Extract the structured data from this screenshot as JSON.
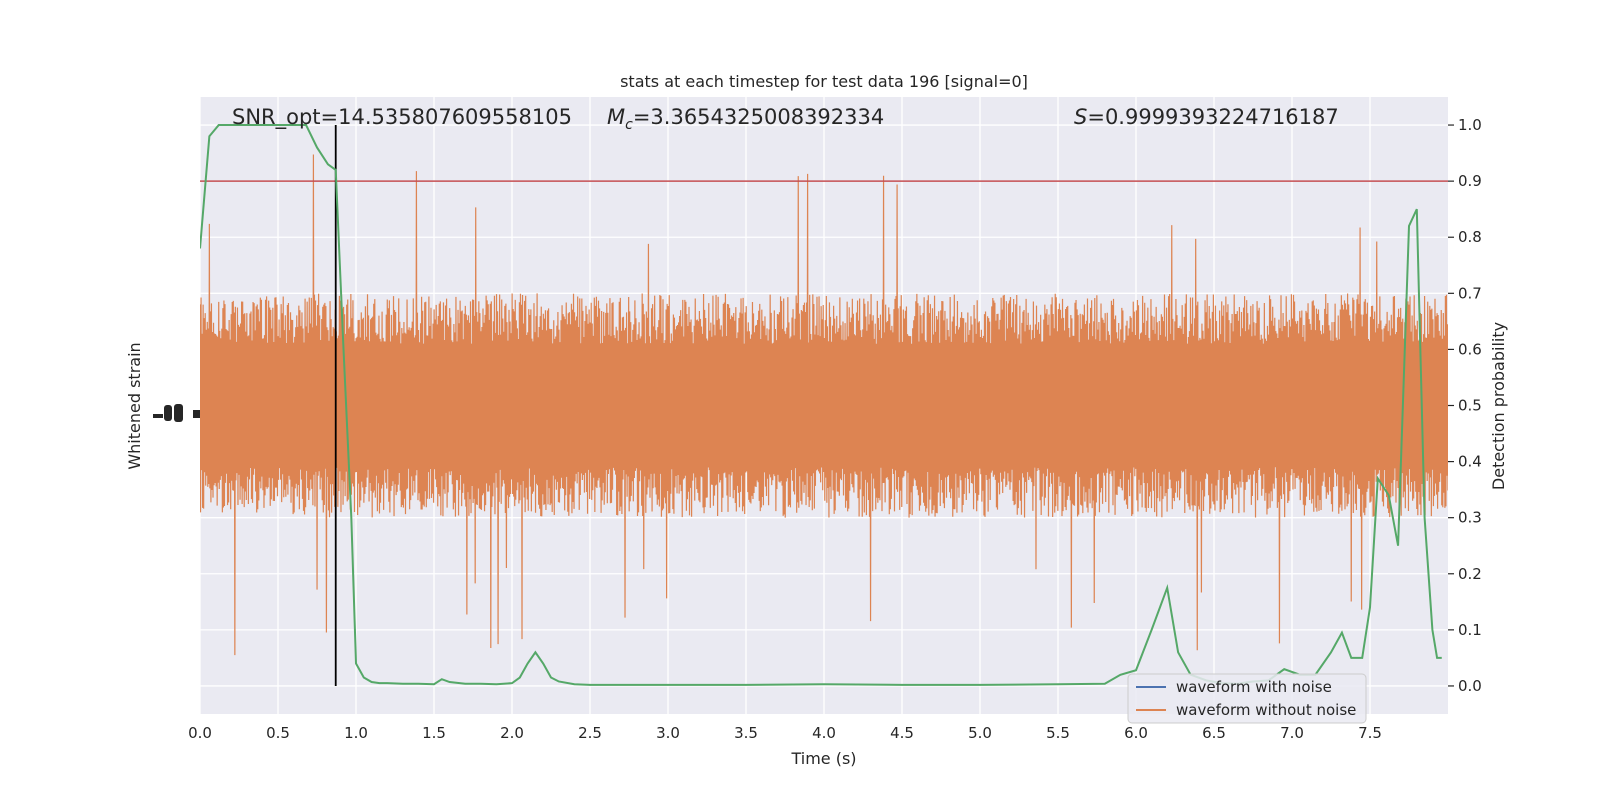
{
  "chart_data": {
    "type": "line",
    "title": "stats at each timestep for test data 196 [signal=0]",
    "xlabel": "Time (s)",
    "ylabel_left": "Whitened strain",
    "ylabel_right": "Detection probability",
    "xlim": [
      0,
      8
    ],
    "ylim_right": [
      -0.05,
      1.05
    ],
    "x_ticks": [
      "0.0",
      "0.5",
      "1.0",
      "1.5",
      "2.0",
      "2.5",
      "3.0",
      "3.5",
      "4.0",
      "4.5",
      "5.0",
      "5.5",
      "6.0",
      "6.5",
      "7.0",
      "7.5"
    ],
    "y_ticks_right": [
      "0.0",
      "0.1",
      "0.2",
      "0.3",
      "0.4",
      "0.5",
      "0.6",
      "0.7",
      "0.8",
      "0.9",
      "1.0"
    ],
    "grid": true,
    "legend_position": "lower-right",
    "annotations": {
      "snr": "SNR_opt=14.535807609558105",
      "mc_symbol": "M",
      "mc_subscript": "c",
      "mc_value": "=3.3654325008392334",
      "s_symbol": "S",
      "s_value": "=0.9999393224716187"
    },
    "threshold": 0.9,
    "marker_time": 0.87,
    "series": [
      {
        "name": "waveform with noise",
        "color": "#4c72b0"
      },
      {
        "name": "waveform without noise",
        "color": "#dd8452",
        "band": [
          0.3,
          0.7
        ],
        "noise_extremes": [
          0.0,
          1.0
        ]
      },
      {
        "color": "#55a868",
        "x": [
          0.0,
          0.06,
          0.12,
          0.2,
          0.3,
          0.4,
          0.5,
          0.6,
          0.68,
          0.75,
          0.82,
          0.87,
          0.92,
          0.97,
          1.0,
          1.05,
          1.1,
          1.15,
          1.2,
          1.3,
          1.4,
          1.5,
          1.55,
          1.6,
          1.7,
          1.8,
          1.9,
          2.0,
          2.05,
          2.1,
          2.15,
          2.2,
          2.25,
          2.3,
          2.4,
          2.5,
          2.6,
          2.7,
          2.8,
          3.0,
          3.5,
          4.0,
          4.5,
          5.0,
          5.5,
          5.8,
          5.9,
          6.0,
          6.1,
          6.2,
          6.27,
          6.35,
          6.45,
          6.55,
          6.65,
          6.75,
          6.85,
          6.95,
          7.05,
          7.15,
          7.25,
          7.32,
          7.38,
          7.45,
          7.5,
          7.55,
          7.62,
          7.68,
          7.75,
          7.8,
          7.85,
          7.9,
          7.93,
          7.96
        ],
        "values": [
          0.78,
          0.98,
          1.0,
          1.0,
          1.0,
          1.0,
          1.0,
          1.0,
          1.0,
          0.96,
          0.93,
          0.92,
          0.6,
          0.3,
          0.04,
          0.015,
          0.007,
          0.005,
          0.005,
          0.004,
          0.004,
          0.003,
          0.012,
          0.007,
          0.004,
          0.004,
          0.003,
          0.005,
          0.015,
          0.04,
          0.06,
          0.04,
          0.015,
          0.008,
          0.003,
          0.002,
          0.002,
          0.002,
          0.002,
          0.002,
          0.002,
          0.003,
          0.002,
          0.002,
          0.003,
          0.004,
          0.02,
          0.028,
          0.1,
          0.175,
          0.06,
          0.02,
          0.01,
          0.005,
          0.004,
          0.008,
          0.01,
          0.03,
          0.02,
          0.02,
          0.06,
          0.095,
          0.05,
          0.05,
          0.14,
          0.37,
          0.34,
          0.25,
          0.82,
          0.85,
          0.3,
          0.1,
          0.05,
          0.05
        ]
      }
    ]
  }
}
